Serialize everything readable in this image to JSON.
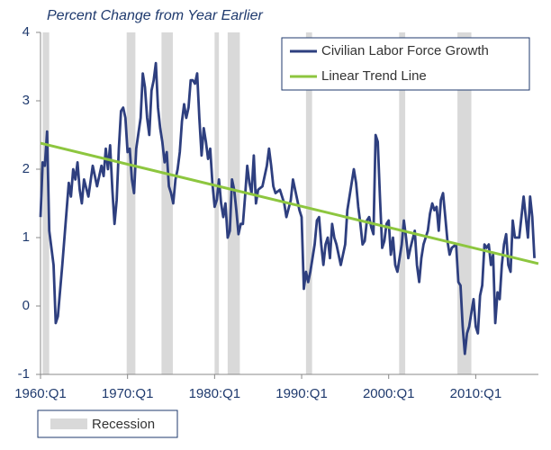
{
  "chart_data": {
    "type": "line",
    "y_label": "Percent Change from Year Earlier",
    "xlim": [
      1960,
      2017.2
    ],
    "ylim": [
      -1,
      4
    ],
    "yticks": [
      4,
      3,
      2,
      1,
      0,
      -1
    ],
    "xticks": [
      {
        "value": 1960,
        "label": "1960:Q1"
      },
      {
        "value": 1970,
        "label": "1970:Q1"
      },
      {
        "value": 1980,
        "label": "1980:Q1"
      },
      {
        "value": 1990,
        "label": "1990:Q1"
      },
      {
        "value": 2000,
        "label": "2000:Q1"
      },
      {
        "value": 2010,
        "label": "2010:Q1"
      }
    ],
    "legend": "upper right",
    "recession_label": "Recession",
    "recession_color": "#d9d9d9",
    "recessions": [
      [
        1960.25,
        1961.0
      ],
      [
        1969.9,
        1970.9
      ],
      [
        1973.9,
        1975.2
      ],
      [
        1980.0,
        1980.5
      ],
      [
        1981.5,
        1982.9
      ],
      [
        1990.5,
        1991.2
      ],
      [
        2001.2,
        2001.9
      ],
      [
        2007.9,
        2009.5
      ]
    ],
    "series": [
      {
        "name": "Civilian Labor Force Growth",
        "color": "#2e3f7f",
        "x": [
          1960.0,
          1960.25,
          1960.5,
          1960.75,
          1961.0,
          1961.5,
          1961.75,
          1962.0,
          1962.5,
          1962.75,
          1963.0,
          1963.25,
          1963.5,
          1963.75,
          1964.0,
          1964.25,
          1964.5,
          1964.75,
          1965.0,
          1965.5,
          1966.0,
          1966.5,
          1967.0,
          1967.25,
          1967.5,
          1967.75,
          1968.0,
          1968.25,
          1968.5,
          1968.75,
          1969.0,
          1969.25,
          1969.5,
          1969.75,
          1970.0,
          1970.25,
          1970.5,
          1970.75,
          1971.0,
          1971.5,
          1971.75,
          1972.0,
          1972.25,
          1972.5,
          1972.75,
          1973.0,
          1973.25,
          1973.5,
          1973.75,
          1974.0,
          1974.25,
          1974.5,
          1974.75,
          1975.0,
          1975.25,
          1975.5,
          1975.75,
          1976.0,
          1976.25,
          1976.5,
          1976.75,
          1977.0,
          1977.25,
          1977.5,
          1977.75,
          1978.0,
          1978.25,
          1978.5,
          1978.75,
          1979.0,
          1979.25,
          1979.5,
          1979.75,
          1980.0,
          1980.25,
          1980.5,
          1980.75,
          1981.0,
          1981.25,
          1981.5,
          1981.75,
          1982.0,
          1982.25,
          1982.5,
          1982.75,
          1983.0,
          1983.25,
          1983.5,
          1983.75,
          1984.0,
          1984.25,
          1984.5,
          1984.75,
          1985.0,
          1985.5,
          1986.0,
          1986.25,
          1986.5,
          1986.75,
          1987.0,
          1987.5,
          1988.0,
          1988.25,
          1988.75,
          1989.0,
          1989.25,
          1989.75,
          1990.0,
          1990.25,
          1990.5,
          1990.75,
          1991.0,
          1991.5,
          1991.75,
          1992.0,
          1992.25,
          1992.5,
          1992.75,
          1993.0,
          1993.25,
          1993.5,
          1993.75,
          1994.0,
          1994.5,
          1995.0,
          1995.25,
          1995.75,
          1996.0,
          1996.25,
          1996.5,
          1996.75,
          1997.0,
          1997.25,
          1997.5,
          1997.75,
          1998.0,
          1998.25,
          1998.5,
          1998.75,
          1999.0,
          1999.25,
          1999.5,
          1999.75,
          2000.0,
          2000.25,
          2000.5,
          2000.75,
          2001.0,
          2001.5,
          2001.75,
          2002.0,
          2002.25,
          2002.5,
          2003.0,
          2003.25,
          2003.5,
          2003.75,
          2004.0,
          2004.5,
          2004.75,
          2005.0,
          2005.25,
          2005.5,
          2005.75,
          2006.0,
          2006.25,
          2006.5,
          2006.75,
          2007.0,
          2007.25,
          2007.75,
          2008.0,
          2008.25,
          2008.5,
          2008.75,
          2009.0,
          2009.25,
          2009.75,
          2010.0,
          2010.25,
          2010.5,
          2010.75,
          2011.0,
          2011.25,
          2011.5,
          2011.75,
          2012.0,
          2012.25,
          2012.5,
          2012.75,
          2013.0,
          2013.25,
          2013.5,
          2013.75,
          2014.0,
          2014.25,
          2014.5,
          2015.0,
          2015.5,
          2015.75,
          2016.0,
          2016.25,
          2016.5,
          2016.75
        ],
        "values": [
          1.3,
          2.1,
          2.05,
          2.55,
          1.1,
          0.6,
          -0.25,
          -0.15,
          0.6,
          1.0,
          1.4,
          1.8,
          1.6,
          2.0,
          1.85,
          2.1,
          1.7,
          1.5,
          1.85,
          1.6,
          2.05,
          1.75,
          2.05,
          1.9,
          2.3,
          2.0,
          2.35,
          1.7,
          1.2,
          1.55,
          2.3,
          2.85,
          2.9,
          2.75,
          2.25,
          2.3,
          1.85,
          1.65,
          2.3,
          2.75,
          3.4,
          3.2,
          2.75,
          2.5,
          3.15,
          3.3,
          3.55,
          2.9,
          2.6,
          2.4,
          2.1,
          2.25,
          1.75,
          1.65,
          1.5,
          1.85,
          2.0,
          2.25,
          2.7,
          2.95,
          2.75,
          2.9,
          3.3,
          3.3,
          3.25,
          3.4,
          2.75,
          2.2,
          2.6,
          2.4,
          2.15,
          2.3,
          1.8,
          1.45,
          1.55,
          1.85,
          1.5,
          1.3,
          1.5,
          1.0,
          1.1,
          1.85,
          1.7,
          1.4,
          1.05,
          1.2,
          1.2,
          1.6,
          2.05,
          1.8,
          1.65,
          2.2,
          1.5,
          1.7,
          1.75,
          2.05,
          2.3,
          2.05,
          1.75,
          1.65,
          1.7,
          1.5,
          1.3,
          1.55,
          1.85,
          1.7,
          1.4,
          1.3,
          0.25,
          0.5,
          0.35,
          0.5,
          0.9,
          1.25,
          1.3,
          0.9,
          0.6,
          0.9,
          1.0,
          0.7,
          1.2,
          1.0,
          0.9,
          0.6,
          0.9,
          1.4,
          1.8,
          2.0,
          1.8,
          1.45,
          1.2,
          0.9,
          0.95,
          1.25,
          1.3,
          1.15,
          1.05,
          2.5,
          2.4,
          1.6,
          0.85,
          0.95,
          1.2,
          1.25,
          0.75,
          1.0,
          0.6,
          0.5,
          0.9,
          1.25,
          1.0,
          0.7,
          0.85,
          1.1,
          0.6,
          0.35,
          0.7,
          0.9,
          1.1,
          1.35,
          1.5,
          1.4,
          1.45,
          1.1,
          1.55,
          1.65,
          1.3,
          0.95,
          0.75,
          0.85,
          0.9,
          0.35,
          0.3,
          -0.3,
          -0.7,
          -0.4,
          -0.3,
          0.1,
          -0.3,
          -0.4,
          0.15,
          0.3,
          0.9,
          0.85,
          0.9,
          0.6,
          0.75,
          -0.25,
          0.2,
          0.1,
          0.6,
          0.9,
          1.05,
          0.6,
          0.5,
          1.25,
          1.0,
          1.0,
          1.6,
          1.3,
          1.0,
          1.6,
          1.3,
          0.7
        ]
      },
      {
        "name": "Linear Trend Line",
        "color": "#8dc63f",
        "x": [
          1960,
          2017.2
        ],
        "values": [
          2.38,
          0.62
        ]
      }
    ]
  }
}
